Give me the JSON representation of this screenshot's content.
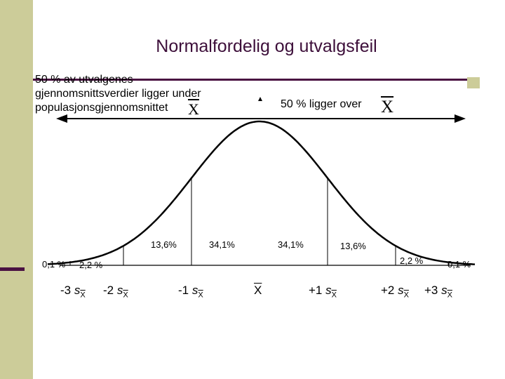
{
  "title": "Normalfordelig og utvalgsfeil",
  "left_note": {
    "lines": [
      "50 % av utvalgenes",
      "gjennomsnittsverdier ligger under",
      "populasjonsgjennomsnittet"
    ],
    "symbol": "X"
  },
  "right_note": {
    "text": "50 % ligger over",
    "symbol": "X"
  },
  "area_labels": {
    "tail_left": "0,1 %",
    "left_2": "2,2 %",
    "left_1": "13,6%",
    "left_0": "34,1%",
    "right_0": "34,1%",
    "right_1": "13,6%",
    "right_2": "2,2 %",
    "tail_right": "0,1 %"
  },
  "axis_labels": {
    "m3": {
      "prefix": "-3 ",
      "s": "s",
      "sub": "X"
    },
    "m2": {
      "prefix": "-2 ",
      "s": "s",
      "sub": "X"
    },
    "m1": {
      "prefix": "-1 ",
      "s": "s",
      "sub": "X"
    },
    "mean": "X",
    "p1": {
      "prefix": "+1 ",
      "s": "s",
      "sub": "X"
    },
    "p2": {
      "prefix": "+2 ",
      "s": "s",
      "sub": "X"
    },
    "p3": {
      "prefix": "+3 ",
      "s": "s",
      "sub": "X"
    }
  },
  "colors": {
    "title": "#3d0f3a",
    "rule": "#4a1242",
    "band": "#cccc99"
  }
}
